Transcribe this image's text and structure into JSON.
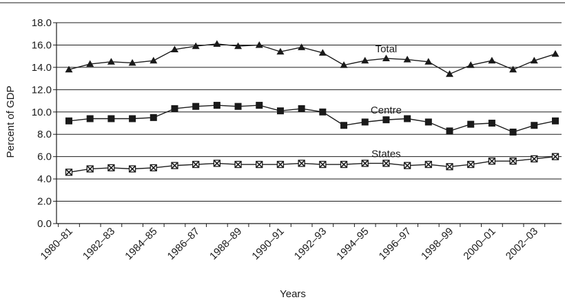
{
  "chart_data": {
    "type": "line",
    "title": "",
    "xlabel": "Years",
    "ylabel": "Percent of GDP",
    "ylim": [
      0,
      18
    ],
    "yticks": [
      "0.0",
      "2.0",
      "4.0",
      "6.0",
      "8.0",
      "10.0",
      "12.0",
      "14.0",
      "16.0",
      "18.0"
    ],
    "grid": "horizontal",
    "legend": "inline labels",
    "x": [
      "1980–81",
      "1981–82",
      "1982–83",
      "1983–84",
      "1984–85",
      "1985–86",
      "1986–87",
      "1987–88",
      "1988–89",
      "1989–90",
      "1990–91",
      "1991–92",
      "1992–93",
      "1993–94",
      "1994–95",
      "1995–96",
      "1996–97",
      "1997–98",
      "1998–99",
      "1999–00",
      "2000–01",
      "2001–02",
      "2002–03",
      "2003–04"
    ],
    "xtick_labels": [
      "1980–81",
      "1982–83",
      "1984–85",
      "1986–87",
      "1988–89",
      "1990–91",
      "1992–93",
      "1994–95",
      "1996–97",
      "1998–99",
      "2000–01",
      "2002–03"
    ],
    "series": [
      {
        "name": "Total",
        "marker": "triangle",
        "values": [
          13.8,
          14.3,
          14.5,
          14.4,
          14.6,
          15.6,
          15.9,
          16.1,
          15.9,
          16.0,
          15.4,
          15.8,
          15.3,
          14.2,
          14.6,
          14.8,
          14.7,
          14.5,
          13.4,
          14.2,
          14.6,
          13.8,
          14.6,
          15.2
        ]
      },
      {
        "name": "Centre",
        "marker": "square",
        "values": [
          9.2,
          9.4,
          9.4,
          9.4,
          9.5,
          10.3,
          10.5,
          10.6,
          10.5,
          10.6,
          10.1,
          10.3,
          10.0,
          8.8,
          9.1,
          9.3,
          9.4,
          9.1,
          8.3,
          8.9,
          9.0,
          8.2,
          8.8,
          9.2
        ]
      },
      {
        "name": "States",
        "marker": "x-square",
        "values": [
          4.6,
          4.9,
          5.0,
          4.9,
          5.0,
          5.2,
          5.3,
          5.4,
          5.3,
          5.3,
          5.3,
          5.4,
          5.3,
          5.3,
          5.4,
          5.4,
          5.2,
          5.3,
          5.1,
          5.3,
          5.6,
          5.6,
          5.8,
          6.0
        ]
      }
    ],
    "series_label_points": [
      15,
      15,
      15
    ],
    "colors": {
      "line": "#1a1a1a",
      "grid": "#1a1a1a",
      "marker_fill": "#1a1a1a"
    }
  }
}
